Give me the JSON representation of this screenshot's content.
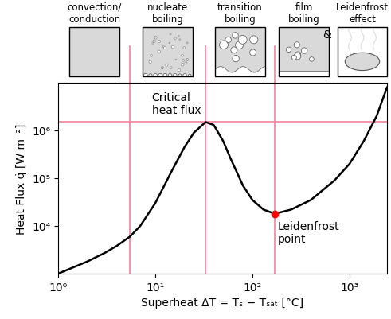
{
  "chart_data": {
    "type": "line",
    "x_label": "Superheat ΔT = Tₛ − Tₛₐₜ [°C]",
    "y_label": "Heat Flux q̇ [W m⁻²]",
    "log": true,
    "grid": false,
    "color": "black",
    "x": [
      1,
      2,
      3,
      4,
      5.5,
      7,
      10,
      15,
      20,
      25,
      33,
      40,
      50,
      60,
      80,
      100,
      130,
      170,
      250,
      400,
      700,
      1000,
      1400,
      1900,
      2430
    ],
    "values": [
      1000,
      1800,
      2700,
      3800,
      6000,
      10000,
      30000,
      150000,
      450000,
      900000,
      1500000,
      1300000,
      600000,
      250000,
      70000,
      35000,
      22000,
      18000,
      22000,
      35000,
      90000,
      200000,
      600000,
      2000000,
      8000000
    ],
    "xlim": [
      1,
      2430
    ],
    "ylim": [
      1000,
      10000000
    ],
    "xticks": [
      {
        "value": 1,
        "label": "10⁰"
      },
      {
        "value": 10,
        "label": "10¹"
      },
      {
        "value": 100,
        "label": "10²"
      },
      {
        "value": 1000,
        "label": "10³"
      }
    ],
    "yticks": [
      {
        "value": 10000,
        "label": "10⁴"
      },
      {
        "value": 100000,
        "label": "10⁵"
      },
      {
        "value": 1000000,
        "label": "10⁶"
      }
    ],
    "regime_boundaries": {
      "x": [
        5.5,
        33,
        170
      ],
      "color": "#f0849c"
    },
    "critical_heat_flux": {
      "text": "Critical\nheat flux",
      "value": 1500000
    },
    "leidenfrost_point": {
      "text": "Leidenfrost\npoint",
      "x": 170,
      "y": 18000,
      "color": "red"
    },
    "regimes": [
      "convection/\nconduction",
      "nucleate\nboiling",
      "transition\nboiling",
      "film\nboiling",
      "Leidenfrost\neffect"
    ],
    "regime_joiner": "&"
  }
}
